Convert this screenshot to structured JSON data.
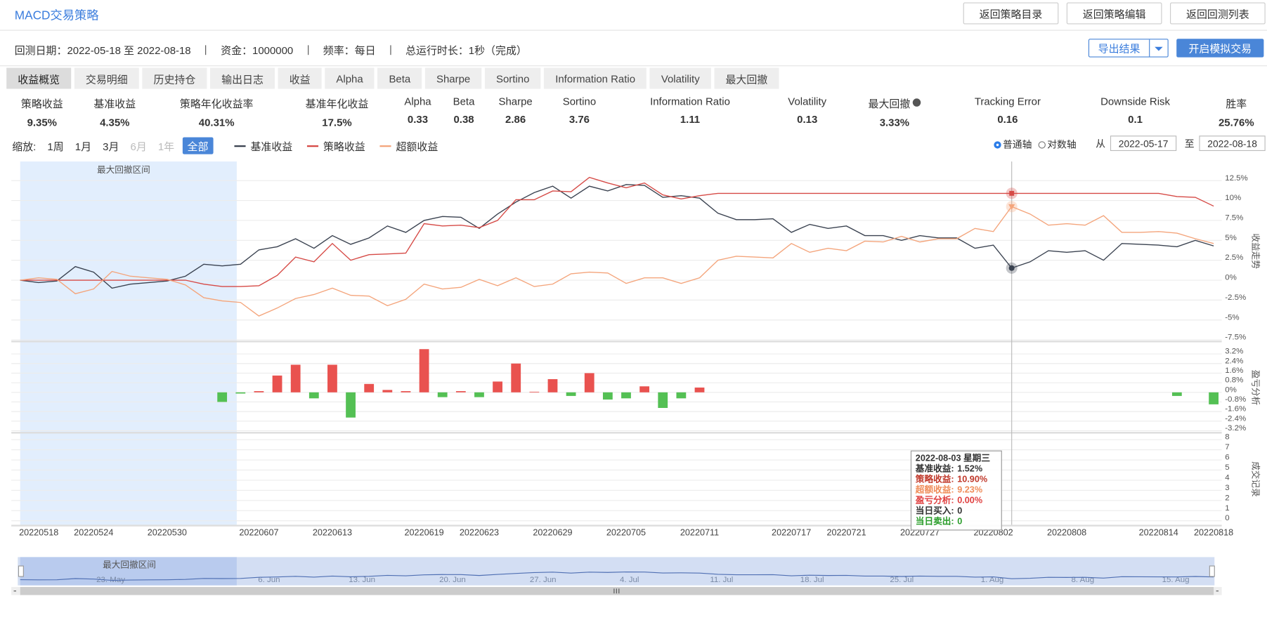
{
  "header": {
    "title": "MACD交易策略",
    "buttons": [
      "返回策略目录",
      "返回策略编辑",
      "返回回测列表"
    ]
  },
  "info": {
    "items": [
      "回测日期：2022-05-18 至 2022-08-18",
      "资金：1000000",
      "频率：每日",
      "总运行时长：1秒（完成）"
    ],
    "export": "导出结果",
    "simulate": "开启模拟交易"
  },
  "tabs": [
    "收益概览",
    "交易明细",
    "历史持仓",
    "输出日志",
    "收益",
    "Alpha",
    "Beta",
    "Sharpe",
    "Sortino",
    "Information Ratio",
    "Volatility",
    "最大回撤"
  ],
  "metrics": [
    {
      "label": "策略收益",
      "value": "9.35%"
    },
    {
      "label": "基准收益",
      "value": "4.35%"
    },
    {
      "label": "策略年化收益率",
      "value": "40.31%"
    },
    {
      "label": "基准年化收益",
      "value": "17.5%"
    },
    {
      "label": "Alpha",
      "value": "0.33"
    },
    {
      "label": "Beta",
      "value": "0.38"
    },
    {
      "label": "Sharpe",
      "value": "2.86"
    },
    {
      "label": "Sortino",
      "value": "3.76"
    },
    {
      "label": "Information Ratio",
      "value": "1.11"
    },
    {
      "label": "Volatility",
      "value": "0.13"
    },
    {
      "label": "最大回撤",
      "value": "3.33%"
    },
    {
      "label": "Tracking Error",
      "value": "0.16"
    },
    {
      "label": "Downside Risk",
      "value": "0.1"
    },
    {
      "label": "胜率",
      "value": "25.76%"
    }
  ],
  "zoom": {
    "label": "缩放:",
    "options": [
      "1周",
      "1月",
      "3月",
      "6月",
      "1年",
      "全部"
    ]
  },
  "axis_mode": [
    "普通轴",
    "对数轴"
  ],
  "range": {
    "from_label": "从",
    "from": "2022-05-17",
    "to_label": "至",
    "to": "2022-08-18"
  },
  "chart_data": [
    {
      "type": "line",
      "y_label": "收益走势",
      "annotation": "最大回撤区间",
      "categories": [
        "20220518",
        null,
        null,
        null,
        "20220524",
        null,
        null,
        null,
        "20220530",
        null,
        null,
        null,
        null,
        "20220607",
        null,
        null,
        null,
        "20220613",
        null,
        null,
        null,
        null,
        "20220619",
        null,
        null,
        "20220623",
        null,
        null,
        null,
        "20220629",
        null,
        null,
        null,
        "20220705",
        null,
        null,
        null,
        "20220711",
        null,
        null,
        null,
        null,
        "20220717",
        null,
        null,
        "20220721",
        null,
        null,
        null,
        "20220727",
        null,
        null,
        null,
        "20220802",
        null,
        null,
        null,
        "20220808",
        null,
        null,
        null,
        null,
        "20220814",
        null,
        null,
        "20220818"
      ],
      "series": [
        {
          "name": "基准收益",
          "color": "#3a4250",
          "values": [
            0,
            -0.3,
            -0.1,
            1.7,
            1.0,
            -1.0,
            -0.5,
            -0.3,
            -0.1,
            0.5,
            2.0,
            1.8,
            2.0,
            3.8,
            4.2,
            5.2,
            4.0,
            5.6,
            4.5,
            5.3,
            6.8,
            6.0,
            7.5,
            8.0,
            7.9,
            6.5,
            8.3,
            9.8,
            11.0,
            11.8,
            10.3,
            11.8,
            11.2,
            12.0,
            11.9,
            10.4,
            10.6,
            10.3,
            8.4,
            7.6,
            7.6,
            7.7,
            6.0,
            7.0,
            6.5,
            6.8,
            5.6,
            5.6,
            5.0,
            5.6,
            5.3,
            5.3,
            4.0,
            4.4,
            1.52,
            2.3,
            3.7,
            3.5,
            3.7,
            2.5,
            4.6,
            4.5,
            4.4,
            4.2,
            5.0,
            4.3
          ]
        },
        {
          "name": "策略收益",
          "color": "#d64a46",
          "values": [
            0,
            0,
            0,
            0,
            0,
            0,
            0,
            0,
            0,
            0,
            -0.5,
            -0.8,
            -0.8,
            -0.7,
            0.6,
            2.9,
            2.3,
            4.6,
            2.5,
            3.2,
            3.3,
            3.4,
            7.1,
            6.8,
            6.9,
            6.6,
            7.5,
            10.1,
            10.1,
            11.2,
            11.1,
            12.9,
            12.2,
            11.6,
            12.2,
            10.7,
            10.2,
            10.6,
            10.9,
            10.9,
            10.9,
            10.9,
            10.9,
            10.9,
            10.9,
            10.9,
            10.9,
            10.9,
            10.9,
            10.9,
            10.9,
            10.9,
            10.9,
            10.9,
            10.9,
            10.9,
            10.9,
            10.9,
            10.9,
            10.9,
            10.9,
            10.9,
            10.9,
            10.5,
            10.4,
            9.3
          ]
        },
        {
          "name": "超额收益",
          "color": "#f4a57c",
          "values": [
            0,
            0.3,
            0.1,
            -1.7,
            -1.1,
            1.1,
            0.5,
            0.3,
            0.1,
            -0.6,
            -2.2,
            -2.6,
            -2.8,
            -4.5,
            -3.5,
            -2.3,
            -1.8,
            -1.0,
            -1.9,
            -2.0,
            -3.2,
            -2.4,
            -0.5,
            -1.1,
            -0.9,
            0.1,
            -0.7,
            0.3,
            -0.8,
            -0.5,
            0.8,
            1.0,
            0.9,
            -0.4,
            0.3,
            0.3,
            -0.4,
            0.3,
            2.5,
            3.0,
            2.9,
            2.8,
            4.6,
            3.5,
            4.0,
            3.7,
            4.9,
            4.8,
            5.5,
            4.8,
            5.2,
            5.2,
            6.5,
            6.1,
            9.23,
            8.3,
            6.9,
            7.1,
            6.9,
            8.1,
            6.0,
            6.0,
            6.1,
            5.9,
            5.2,
            4.6
          ]
        }
      ],
      "ylim": [
        -7.6,
        14.9
      ],
      "yticks": [
        {
          "value": 12.5,
          "label": "12.5%"
        },
        {
          "value": 10,
          "label": "10%"
        },
        {
          "value": 7.5,
          "label": "7.5%"
        },
        {
          "value": 5,
          "label": "5%"
        },
        {
          "value": 2.5,
          "label": "2.5%"
        },
        {
          "value": 0,
          "label": "0%"
        },
        {
          "value": -2.5,
          "label": "-2.5%"
        },
        {
          "value": -5,
          "label": "-5%"
        },
        {
          "value": -7.5,
          "label": "-7.5%"
        }
      ],
      "grid": true
    },
    {
      "type": "bar",
      "y_label": "盈亏分析",
      "positive_color": "#e9524f",
      "negative_color": "#54c054",
      "values": [
        0,
        0,
        0,
        0,
        0,
        0,
        0,
        0,
        0,
        0,
        0,
        -0.8,
        -0.1,
        0.1,
        1.4,
        2.3,
        -0.5,
        2.3,
        -2.1,
        0.7,
        0.2,
        0.1,
        3.6,
        -0.4,
        0.1,
        -0.4,
        0.9,
        2.4,
        0.05,
        1.1,
        -0.3,
        1.6,
        -0.6,
        -0.5,
        0.5,
        -1.3,
        -0.5,
        0.4,
        0,
        0,
        0,
        0,
        0,
        0,
        0,
        0,
        0,
        0,
        0,
        0,
        0,
        0,
        0,
        0,
        0,
        0,
        0,
        0,
        0,
        0,
        0,
        0,
        0,
        -0.3,
        0,
        -1.0
      ],
      "ylim": [
        -3.3,
        4.1
      ],
      "yticks": [
        {
          "value": 3.2,
          "label": "3.2%"
        },
        {
          "value": 2.4,
          "label": "2.4%"
        },
        {
          "value": 1.6,
          "label": "1.6%"
        },
        {
          "value": 0.8,
          "label": "0.8%"
        },
        {
          "value": 0,
          "label": "0%"
        },
        {
          "value": -0.8,
          "label": "-0.8%"
        },
        {
          "value": -1.6,
          "label": "-1.6%"
        },
        {
          "value": -2.4,
          "label": "-2.4%"
        },
        {
          "value": -3.2,
          "label": "-3.2%"
        }
      ],
      "grid": true
    },
    {
      "type": "bar",
      "y_label": "成交记录",
      "ylim": [
        -0.4,
        8.6
      ],
      "yticks": [
        8,
        7,
        6,
        5,
        4,
        3,
        2,
        1,
        0
      ],
      "grid": true
    }
  ],
  "tooltip": {
    "title": "2022-08-03 星期三",
    "rows": [
      {
        "label": "基准收益:",
        "value": "1.52%"
      },
      {
        "label": "策略收益:",
        "value": "10.90%"
      },
      {
        "label": "超额收益:",
        "value": "9.23%"
      },
      {
        "label": "盈亏分析:",
        "value": "0.00%"
      },
      {
        "label": "当日买入:",
        "value": "0"
      },
      {
        "label": "当日卖出:",
        "value": "0"
      }
    ]
  },
  "navigator": {
    "label": "最大回撤区间",
    "ticks": [
      "23. May",
      "6. Jun",
      "13. Jun",
      "20. Jun",
      "27. Jun",
      "4. Jul",
      "11. Jul",
      "18. Jul",
      "25. Jul",
      "1. Aug",
      "8. Aug",
      "15. Aug"
    ]
  }
}
